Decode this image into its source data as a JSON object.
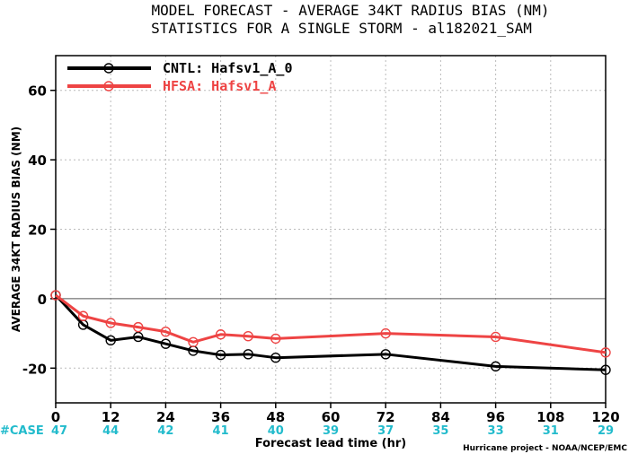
{
  "chart_data": {
    "type": "line",
    "title": "MODEL FORECAST - AVERAGE 34KT RADIUS BIAS (NM)",
    "subtitle": "STATISTICS FOR A SINGLE STORM - al182021_SAM",
    "xlabel": "Forecast lead time (hr)",
    "ylabel": "AVERAGE 34KT RADIUS BIAS (NM)",
    "xlim": [
      0,
      120
    ],
    "ylim": [
      -30,
      70
    ],
    "x_ticks": [
      0,
      12,
      24,
      36,
      48,
      60,
      72,
      84,
      96,
      108,
      120
    ],
    "y_ticks": [
      -20,
      0,
      20,
      40,
      60
    ],
    "grid": true,
    "legend_position": "top-left",
    "series": [
      {
        "name": "CNTL: Hafsv1_A_0",
        "color": "#000000",
        "x": [
          0,
          6,
          12,
          18,
          24,
          30,
          36,
          42,
          48,
          72,
          96,
          120
        ],
        "y": [
          1,
          -7.5,
          -12,
          -11,
          -13,
          -15,
          -16.2,
          -16,
          -17,
          -16,
          -19.5,
          -20.5
        ]
      },
      {
        "name": "HFSA: Hafsv1_A",
        "color": "#ee4444",
        "x": [
          0,
          6,
          12,
          18,
          24,
          30,
          36,
          42,
          48,
          72,
          96,
          120
        ],
        "y": [
          1,
          -5,
          -7,
          -8.2,
          -9.5,
          -12.5,
          -10.3,
          -10.8,
          -11.5,
          -10,
          -11,
          -15.5
        ]
      }
    ],
    "case_label": "#CASE",
    "case_color": "#22bbcc",
    "cases": [
      {
        "x": 0,
        "n": "47"
      },
      {
        "x": 12,
        "n": "44"
      },
      {
        "x": 24,
        "n": "42"
      },
      {
        "x": 36,
        "n": "41"
      },
      {
        "x": 48,
        "n": "40"
      },
      {
        "x": 60,
        "n": "39"
      },
      {
        "x": 72,
        "n": "37"
      },
      {
        "x": 84,
        "n": "35"
      },
      {
        "x": 96,
        "n": "33"
      },
      {
        "x": 108,
        "n": "31"
      },
      {
        "x": 120,
        "n": "29"
      }
    ],
    "credit": "Hurricane project - NOAA/NCEP/EMC"
  }
}
